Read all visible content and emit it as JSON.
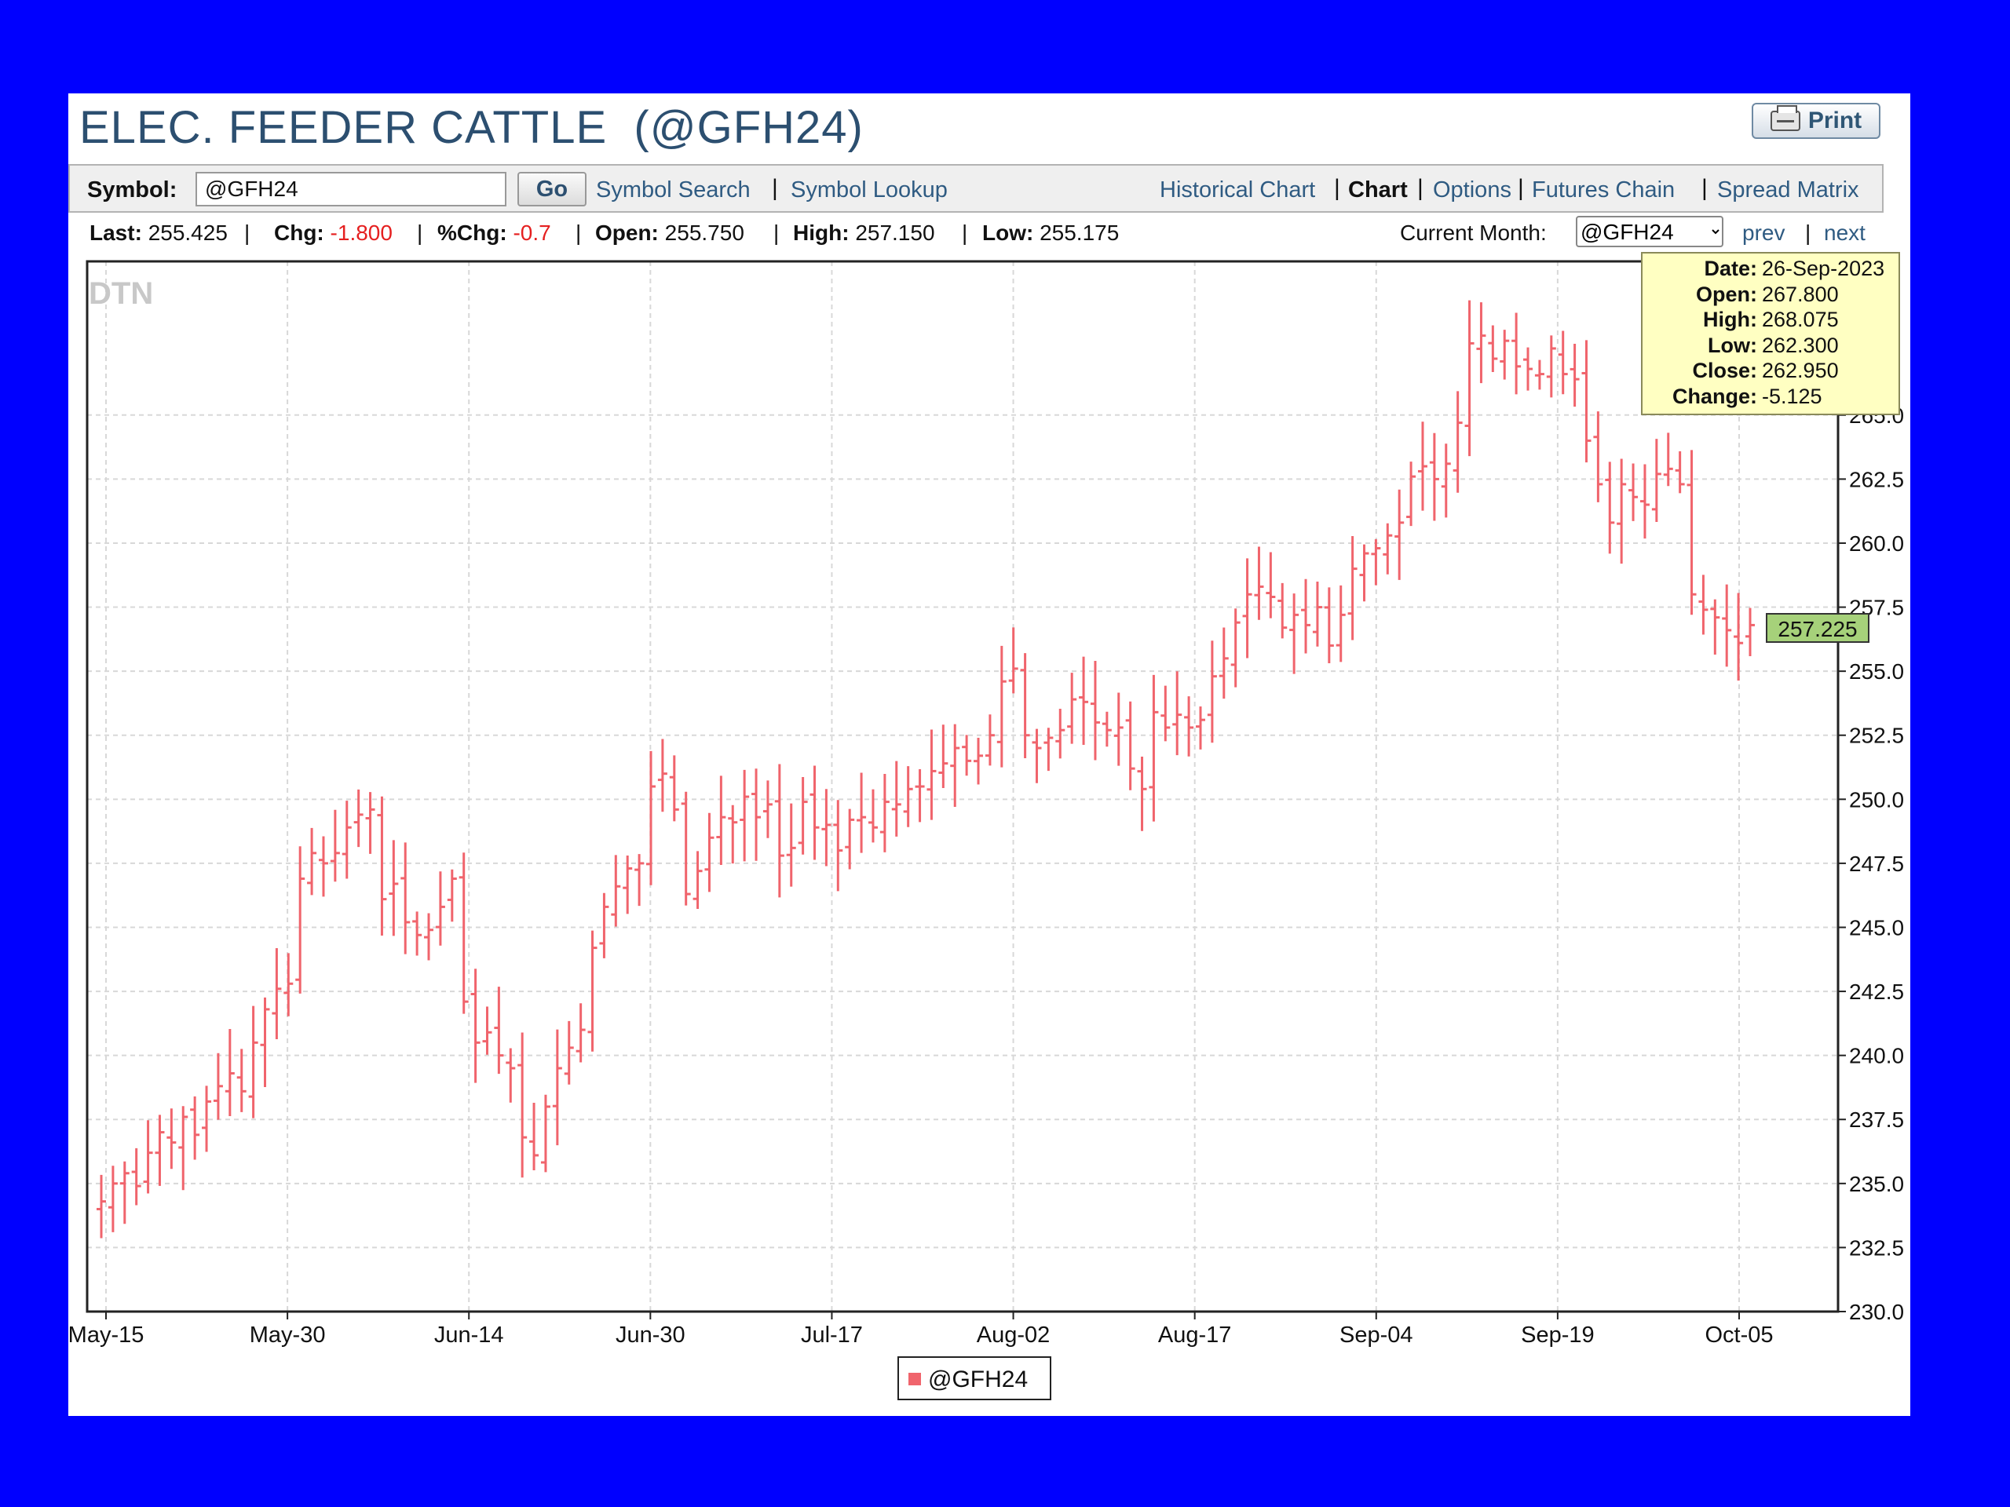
{
  "header": {
    "title": "ELEC. FEEDER CATTLE  (@GFH24)",
    "print_label": "Print"
  },
  "toolbar": {
    "symbol_label": "Symbol:",
    "symbol_value": "@GFH24",
    "go_label": "Go",
    "left_links": [
      "Symbol Search",
      "Symbol Lookup"
    ],
    "right_links": [
      "Historical Chart",
      "Chart",
      "Options",
      "Futures Chain",
      "Spread Matrix"
    ],
    "active_link": "Chart"
  },
  "quote": {
    "last_label": "Last:",
    "last": "255.425",
    "chg_label": "Chg:",
    "chg": "-1.800",
    "pchg_label": "%Chg:",
    "pchg": "-0.7",
    "open_label": "Open:",
    "open": "255.750",
    "high_label": "High:",
    "high": "257.150",
    "low_label": "Low:",
    "low": "255.175",
    "month_label": "Current Month:",
    "month_value": "@GFH24",
    "prev_label": "prev",
    "next_label": "next"
  },
  "tooltip": {
    "rows": [
      {
        "k": "Date:",
        "v": "26-Sep-2023"
      },
      {
        "k": "Open:",
        "v": "267.800"
      },
      {
        "k": "High:",
        "v": "268.075"
      },
      {
        "k": "Low:",
        "v": "262.300"
      },
      {
        "k": "Close:",
        "v": "262.950"
      },
      {
        "k": "Change:",
        "v": "-5.125"
      }
    ]
  },
  "colors": {
    "background": "#0000ff",
    "bar": "#f0646c",
    "grid": "#d8d8d8",
    "last_price_bg": "#a6d17a",
    "link": "#2f5b82",
    "negative": "#e52020"
  },
  "chart_data": {
    "type": "ohlc",
    "watermark": "DTN",
    "series_name": "@GFH24",
    "x_ticks": [
      "May-15",
      "May-30",
      "Jun-14",
      "Jun-30",
      "Jul-17",
      "Aug-02",
      "Aug-17",
      "Sep-04",
      "Sep-19",
      "Oct-05"
    ],
    "y_ticks": [
      230.0,
      232.5,
      235.0,
      237.5,
      240.0,
      242.5,
      245.0,
      247.5,
      250.0,
      252.5,
      255.0,
      257.5,
      260.0,
      262.5,
      265.0
    ],
    "ylim": [
      230.0,
      271.0
    ],
    "last_price": 257.225,
    "grid": true,
    "legend": "bottom-center",
    "series_closes": [
      234.3,
      235.0,
      235.4,
      234.9,
      236.2,
      237.0,
      236.6,
      237.6,
      236.9,
      238.2,
      238.8,
      239.3,
      238.6,
      240.5,
      241.8,
      242.6,
      242.8,
      246.9,
      247.9,
      247.5,
      247.9,
      248.9,
      249.4,
      249.6,
      246.1,
      246.7,
      245.2,
      244.7,
      244.9,
      245.8,
      246.9,
      242.1,
      240.5,
      240.9,
      240.0,
      239.5,
      236.8,
      236.1,
      238.0,
      239.5,
      240.3,
      241.0,
      244.2,
      245.8,
      246.6,
      247.3,
      247.5,
      250.5,
      251.0,
      249.6,
      246.3,
      247.2,
      248.5,
      249.3,
      249.1,
      250.1,
      249.3,
      249.8,
      247.8,
      248.1,
      249.9,
      248.9,
      249.0,
      248.0,
      249.2,
      249.3,
      248.9,
      249.9,
      249.8,
      250.4,
      250.5,
      251.1,
      251.4,
      252.0,
      251.5,
      251.7,
      252.5,
      254.6,
      255.1,
      252.5,
      252.0,
      252.4,
      252.7,
      253.9,
      253.8,
      253.0,
      252.7,
      252.8,
      251.2,
      250.4,
      253.4,
      252.8,
      253.3,
      252.8,
      253.1,
      254.8,
      255.5,
      256.9,
      258.0,
      258.3,
      257.9,
      256.7,
      257.2,
      256.8,
      257.5,
      256.0,
      257.2,
      259.0,
      259.6,
      259.8,
      260.3,
      260.8,
      262.6,
      263.0,
      262.5,
      263.1,
      264.7,
      267.8,
      268.1,
      267.2,
      267.9,
      266.9,
      266.8,
      266.6,
      267.6,
      266.6,
      266.4,
      264.0,
      262.3,
      260.8,
      262.3,
      261.8,
      261.5,
      262.7,
      262.9,
      262.3,
      258.0,
      257.4,
      257.1,
      256.6,
      256.1,
      256.8
    ],
    "tooltip_bar": {
      "date": "26-Sep-2023",
      "open": 267.8,
      "high": 268.075,
      "low": 262.3,
      "close": 262.95,
      "change": -5.125
    }
  }
}
